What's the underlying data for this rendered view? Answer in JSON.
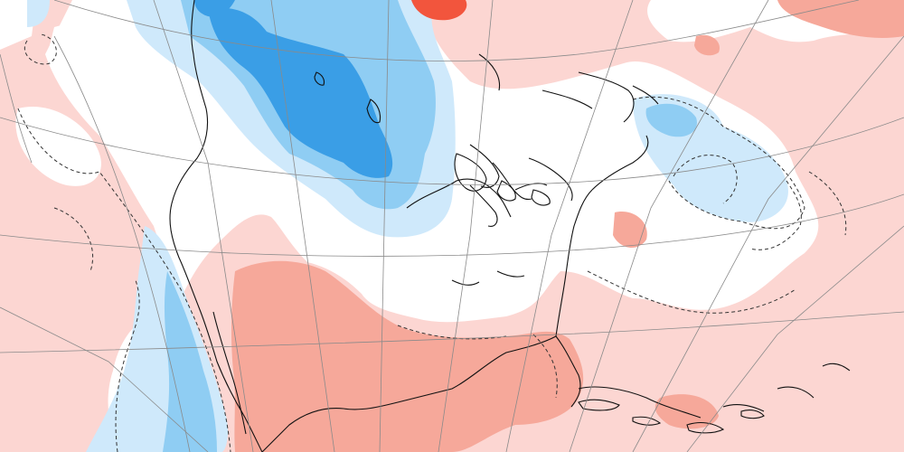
{
  "map": {
    "projection": "polar-stereographic",
    "field": "temperature-anomaly",
    "colors": {
      "warm_light": "#fcd6d2",
      "warm_medium": "#f6a89a",
      "warm_strong": "#f2553d",
      "neutral": "#ffffff",
      "cool_light": "#cfe9fb",
      "cool_medium": "#8fcdf3",
      "cool_strong": "#3a9ee6",
      "coastline": "#111111",
      "graticule": "#8a8a8a",
      "zero_contour": "#333333"
    }
  }
}
